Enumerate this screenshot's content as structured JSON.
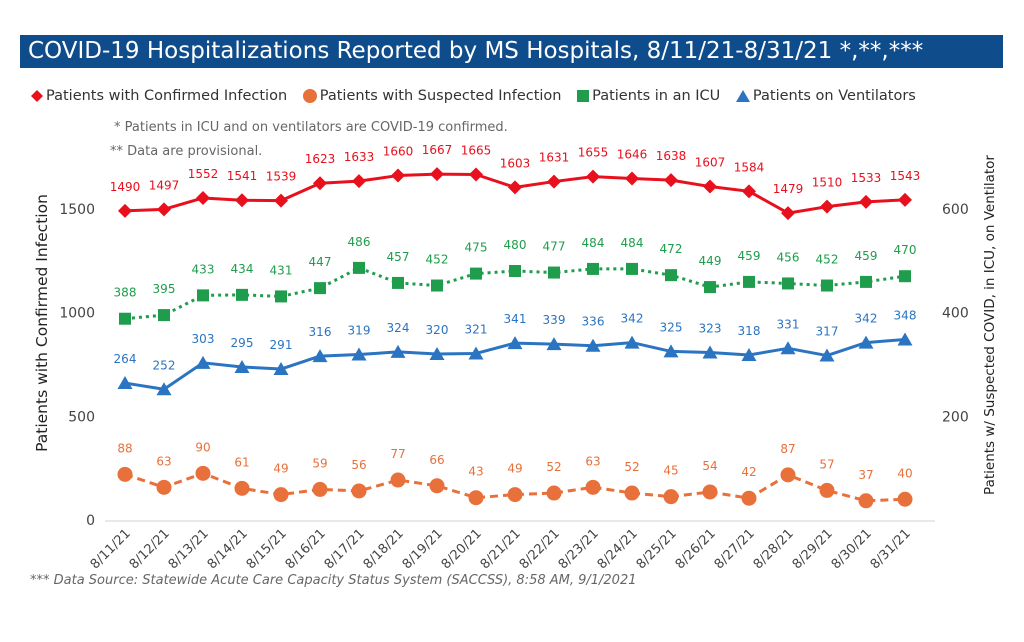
{
  "title": "COVID-19 Hospitalizations Reported by MS Hospitals, 8/11/21-8/31/21 *,**,***",
  "notes": [
    "* Patients in ICU and on ventilators are COVID-19 confirmed.",
    "** Data are provisional."
  ],
  "source": "*** Data Source: Statewide Acute Care Capacity Status System (SACCSS), 8:58 AM, 9/1/2021",
  "colors": {
    "title_bg": "#0f4c8b",
    "confirmed": "#e8101d",
    "suspected": "#e8703a",
    "icu": "#1f9d4c",
    "ventilators": "#2a74c2"
  },
  "chart_data": {
    "type": "line",
    "title": "COVID-19 Hospitalizations Reported by MS Hospitals, 8/11/21-8/31/21 *,**,***",
    "categories": [
      "8/11/21",
      "8/12/21",
      "8/13/21",
      "8/14/21",
      "8/15/21",
      "8/16/21",
      "8/17/21",
      "8/18/21",
      "8/19/21",
      "8/20/21",
      "8/21/21",
      "8/22/21",
      "8/23/21",
      "8/24/21",
      "8/25/21",
      "8/26/21",
      "8/27/21",
      "8/28/21",
      "8/29/21",
      "8/30/21",
      "8/31/21"
    ],
    "ylabel_left": "Patients with Confirmed Infection",
    "ylabel_right": "Patients w/ Suspected COVID, in ICU, on Ventilator",
    "ylim_left": [
      0,
      1700
    ],
    "ylim_right": [
      0,
      680
    ],
    "yticks_left": [
      0,
      500,
      1000,
      1500
    ],
    "yticks_right": [
      200,
      400,
      600
    ],
    "legend_position": "top",
    "grid": false,
    "series": [
      {
        "name": "Patients with Confirmed Infection",
        "axis": "left",
        "marker": "diamond",
        "line": "solid",
        "color": "#e8101d",
        "values": [
          1490,
          1497,
          1552,
          1541,
          1539,
          1623,
          1633,
          1660,
          1667,
          1665,
          1603,
          1631,
          1655,
          1646,
          1638,
          1607,
          1584,
          1479,
          1510,
          1533,
          1543
        ]
      },
      {
        "name": "Patients with Suspected Infection",
        "axis": "right",
        "marker": "circle",
        "line": "dashed",
        "color": "#e8703a",
        "values": [
          88,
          63,
          90,
          61,
          49,
          59,
          56,
          77,
          66,
          43,
          49,
          52,
          63,
          52,
          45,
          54,
          42,
          87,
          57,
          37,
          40
        ]
      },
      {
        "name": "Patients in an ICU",
        "axis": "right",
        "marker": "square",
        "line": "dotted",
        "color": "#1f9d4c",
        "values": [
          388,
          395,
          433,
          434,
          431,
          447,
          486,
          457,
          452,
          475,
          480,
          477,
          484,
          484,
          472,
          449,
          459,
          456,
          452,
          459,
          470
        ]
      },
      {
        "name": "Patients on Ventilators",
        "axis": "right",
        "marker": "triangle",
        "line": "solid",
        "color": "#2a74c2",
        "values": [
          264,
          252,
          303,
          295,
          291,
          316,
          319,
          324,
          320,
          321,
          341,
          339,
          336,
          342,
          325,
          323,
          318,
          331,
          317,
          342,
          348
        ]
      }
    ]
  }
}
